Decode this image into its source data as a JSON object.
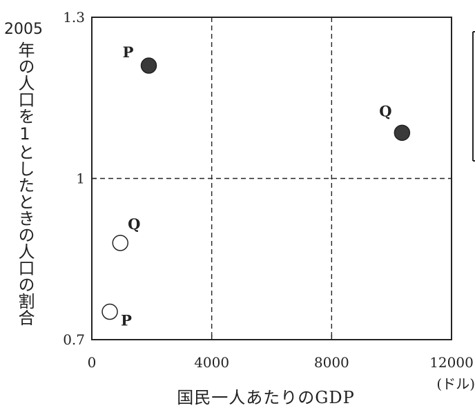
{
  "chart_data": {
    "type": "scatter",
    "ylabel_year": "2005",
    "ylabel": "年の人口を1としたときの人口の割合",
    "xlabel": "国民一人あたりのGDP",
    "xunit": "(ドル)",
    "xlim": [
      0,
      12000
    ],
    "ylim": [
      0.7,
      1.3
    ],
    "x_ticks": [
      "0",
      "4000",
      "8000",
      "12000"
    ],
    "y_ticks": [
      "0.7",
      "1",
      "1.3"
    ],
    "reference_lines": {
      "x": [
        4000,
        8000
      ],
      "y": [
        1.0
      ]
    },
    "series": [
      {
        "style": "filled",
        "points": [
          {
            "label": "P",
            "x": 1900,
            "y": 1.21
          },
          {
            "label": "Q",
            "x": 10350,
            "y": 1.085
          }
        ]
      },
      {
        "style": "open",
        "points": [
          {
            "label": "Q",
            "x": 950,
            "y": 0.88
          },
          {
            "label": "P",
            "x": 600,
            "y": 0.752
          }
        ]
      }
    ],
    "colors": {
      "filled": "#3a3a3a",
      "open": "#ffffff",
      "stroke": "#222222",
      "grid": "#222222"
    }
  }
}
